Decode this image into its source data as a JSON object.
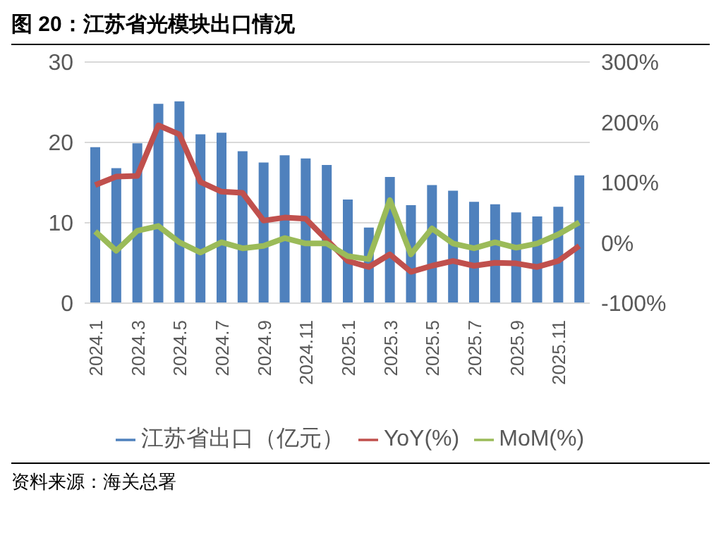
{
  "chart_data": {
    "type": "bar",
    "title": "图 20：江苏省光模块出口情况",
    "annotations": [
      "资料来源：海关总署"
    ],
    "categories": [
      "2024.1",
      null,
      "2024.3",
      null,
      "2024.5",
      null,
      "2024.7",
      null,
      "2024.9",
      null,
      "2024.11",
      null,
      "2025.1",
      null,
      "2025.3",
      null,
      "2025.5",
      null,
      "2025.7",
      null,
      "2025.9",
      null,
      "2025.11",
      null
    ],
    "series": [
      {
        "name": "江苏省出口（亿元）",
        "color": "#4f81bd",
        "values": [
          19.4,
          16.8,
          19.9,
          24.8,
          25.1,
          21.0,
          21.2,
          18.9,
          17.5,
          18.4,
          18.0,
          17.2,
          12.9,
          9.4,
          15.7,
          12.2,
          14.7,
          14.0,
          12.6,
          12.3,
          11.3,
          10.8,
          12.0,
          15.9
        ]
      },
      {
        "name": "YoY(%)",
        "type": "line",
        "axis": "y2",
        "color": "#c0504d",
        "values": [
          96,
          110,
          111,
          195,
          180,
          101,
          85,
          83,
          37,
          42,
          40,
          5,
          -30,
          -40,
          -19,
          -48,
          -38,
          -30,
          -38,
          -33,
          -34,
          -40,
          -30,
          -5
        ]
      },
      {
        "name": "MoM(%)",
        "type": "line",
        "axis": "y2",
        "color": "#9bbb59",
        "values": [
          19,
          -13,
          20,
          28,
          1,
          -16,
          1,
          -9,
          -5,
          8,
          -1,
          -1,
          -22,
          -27,
          71,
          -19,
          24,
          -1,
          -9,
          1,
          -8,
          -1,
          14,
          34
        ]
      }
    ],
    "ylim": [
      0,
      30
    ],
    "yticks": [
      0,
      10,
      20,
      30
    ],
    "y2lim": [
      -100,
      300
    ],
    "y2ticks": [
      {
        "value": -100,
        "label": "-100%"
      },
      {
        "value": 0,
        "label": "0%"
      },
      {
        "value": 100,
        "label": "100%"
      },
      {
        "value": 200,
        "label": "200%"
      },
      {
        "value": 300,
        "label": "300%"
      }
    ],
    "grid": "y",
    "legend": "bottom",
    "marker": "none"
  }
}
